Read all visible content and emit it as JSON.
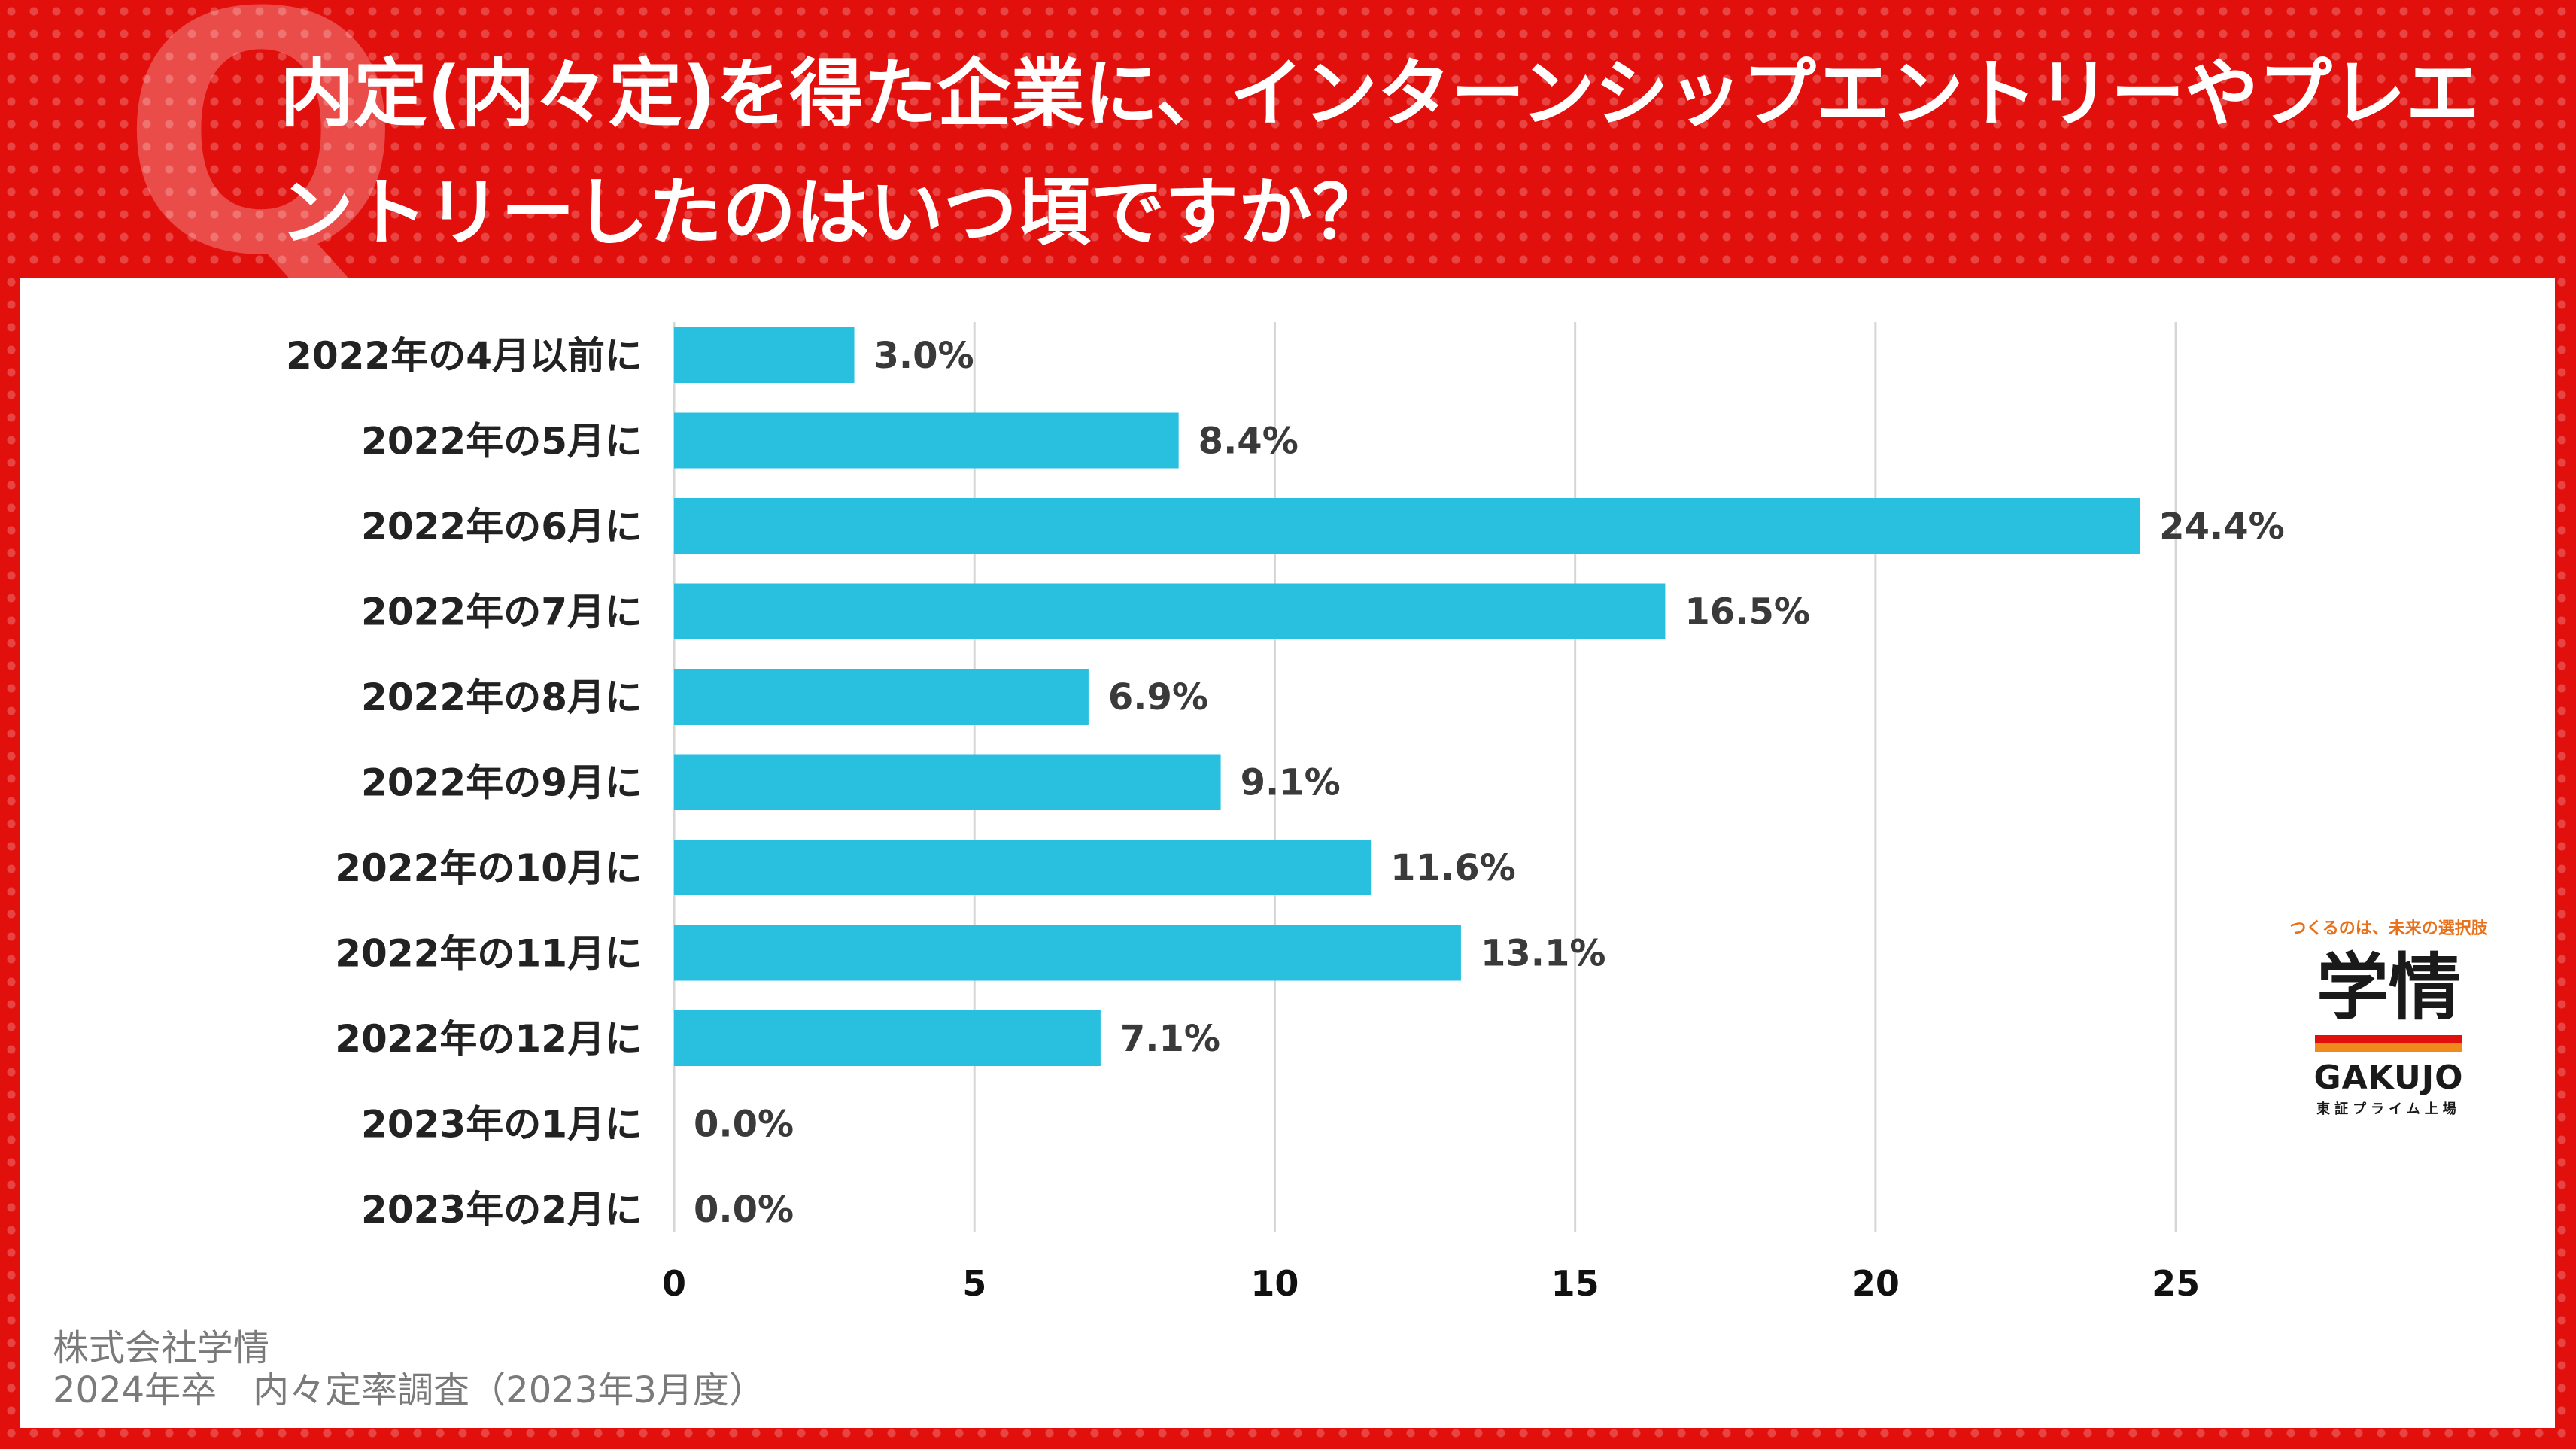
{
  "header": {
    "q_mark": "Q",
    "title": "内定(内々定)を得た企業に、インターンシップエントリーやプレエントリーしたのはいつ頃ですか？"
  },
  "colors": {
    "background": "#e2100d",
    "bar": "#29c0e0",
    "panel": "#ffffff"
  },
  "chart_data": {
    "type": "bar",
    "orientation": "horizontal",
    "title": "内定(内々定)を得た企業に、インターンシップエントリーやプレエントリーしたのはいつ頃ですか？",
    "categories": [
      "2022年の4月以前に",
      "2022年の5月に",
      "2022年の6月に",
      "2022年の7月に",
      "2022年の8月に",
      "2022年の9月に",
      "2022年の10月に",
      "2022年の11月に",
      "2022年の12月に",
      "2023年の1月に",
      "2023年の2月に"
    ],
    "values": [
      3.0,
      8.4,
      24.4,
      16.5,
      6.9,
      9.1,
      11.6,
      13.1,
      7.1,
      0.0,
      0.0
    ],
    "value_labels": [
      "3.0%",
      "8.4%",
      "24.4%",
      "16.5%",
      "6.9%",
      "9.1%",
      "11.6%",
      "13.1%",
      "7.1%",
      "0.0%",
      "0.0%"
    ],
    "xticks": [
      0,
      5,
      10,
      15,
      20,
      25
    ],
    "xtick_labels": [
      "0",
      "5",
      "10",
      "15",
      "20",
      "25"
    ],
    "xlim": [
      0,
      25.5
    ],
    "xlabel": "",
    "ylabel": "",
    "grid": true,
    "legend": "none"
  },
  "source": {
    "company": "株式会社学情",
    "survey": "2024年卒　内々定率調査（2023年3月度）"
  },
  "logo": {
    "tagline": "つくるのは、未来の選択肢",
    "mark": "学情",
    "name_en": "GAKUJO",
    "listing": "東証プライム上場"
  }
}
